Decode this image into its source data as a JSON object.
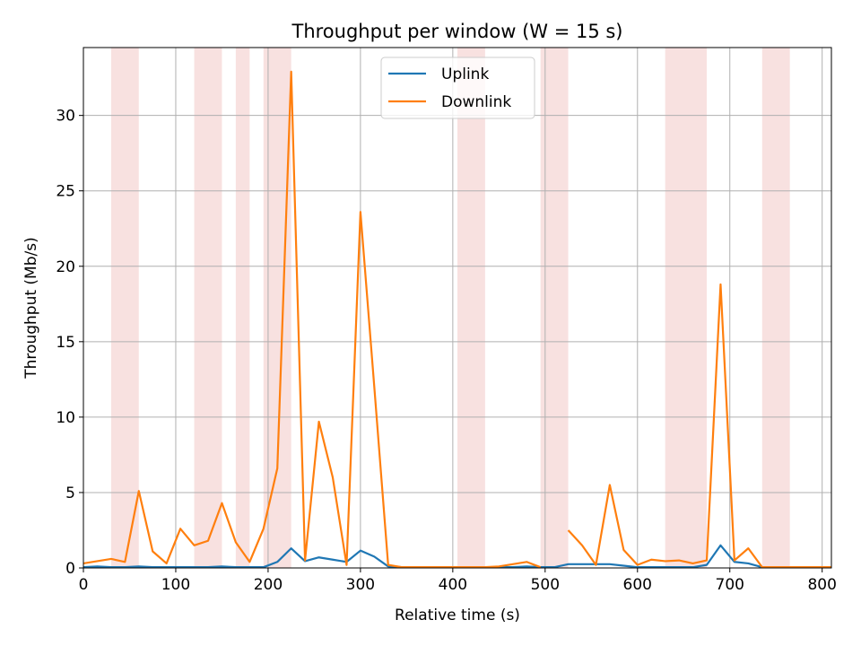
{
  "chart_data": {
    "type": "line",
    "title": "Throughput per window (W = 15 s)",
    "xlabel": "Relative time (s)",
    "ylabel": "Throughput (Mb/s)",
    "xlim": [
      0,
      810
    ],
    "ylim": [
      0,
      34.5
    ],
    "xticks": [
      0,
      100,
      200,
      300,
      400,
      500,
      600,
      700,
      800
    ],
    "yticks": [
      0,
      5,
      10,
      15,
      20,
      25,
      30
    ],
    "grid": true,
    "legend": "top-center",
    "shaded_intervals": [
      [
        30,
        60
      ],
      [
        120,
        150
      ],
      [
        165,
        180
      ],
      [
        195,
        225
      ],
      [
        405,
        435
      ],
      [
        495,
        525
      ],
      [
        630,
        675
      ],
      [
        735,
        765
      ]
    ],
    "shade_color": "#f8e1e0",
    "series": [
      {
        "name": "Uplink",
        "color": "#1f77b4",
        "x": [
          0,
          15,
          30,
          45,
          60,
          75,
          90,
          105,
          120,
          135,
          150,
          165,
          180,
          195,
          210,
          225,
          240,
          255,
          270,
          285,
          300,
          315,
          330,
          345,
          360,
          375,
          390,
          405,
          420,
          435,
          450,
          465,
          480,
          495,
          510,
          525,
          540,
          555,
          570,
          585,
          600,
          615,
          630,
          645,
          660,
          675,
          690,
          705,
          720,
          735,
          750,
          765,
          780,
          795,
          810
        ],
        "values": [
          0.05,
          0.1,
          0.05,
          0.05,
          0.1,
          0.05,
          0.05,
          0.05,
          0.05,
          0.05,
          0.1,
          0.05,
          0.05,
          0.05,
          0.4,
          1.3,
          0.45,
          0.7,
          0.55,
          0.4,
          1.15,
          0.75,
          0.1,
          0.05,
          0.05,
          0.05,
          0.05,
          0.05,
          0.05,
          0.05,
          0.05,
          0.05,
          0.1,
          0.05,
          0.05,
          0.25,
          0.25,
          0.25,
          0.25,
          0.15,
          0.05,
          0.05,
          0.05,
          0.05,
          0.05,
          0.2,
          1.5,
          0.4,
          0.3,
          0.05,
          0.05,
          0.05,
          0.05,
          0.05,
          0.05
        ]
      },
      {
        "name": "Downlink",
        "color": "#ff7f0e",
        "x": [
          0,
          15,
          30,
          45,
          60,
          75,
          90,
          105,
          120,
          135,
          150,
          165,
          180,
          195,
          210,
          225,
          240,
          255,
          270,
          285,
          300,
          315,
          330,
          345,
          360,
          375,
          390,
          405,
          420,
          435,
          450,
          465,
          480,
          495,
          null,
          525,
          540,
          555,
          570,
          585,
          600,
          615,
          630,
          645,
          660,
          675,
          690,
          705,
          720,
          735,
          750,
          765,
          780,
          795,
          810
        ],
        "values": [
          0.3,
          0.45,
          0.6,
          0.4,
          5.1,
          1.1,
          0.3,
          2.6,
          1.5,
          1.8,
          4.3,
          1.7,
          0.4,
          2.6,
          6.6,
          32.9,
          0.5,
          9.7,
          6.0,
          0.2,
          23.6,
          12.0,
          0.2,
          0.05,
          0.05,
          0.05,
          0.05,
          0.05,
          0.05,
          0.05,
          0.1,
          0.25,
          0.4,
          0.05,
          null,
          2.5,
          1.5,
          0.2,
          5.5,
          1.2,
          0.2,
          0.55,
          0.45,
          0.5,
          0.3,
          0.5,
          18.8,
          0.5,
          1.3,
          0.05,
          0.05,
          0.05,
          0.05,
          0.05,
          0.05
        ]
      }
    ]
  }
}
